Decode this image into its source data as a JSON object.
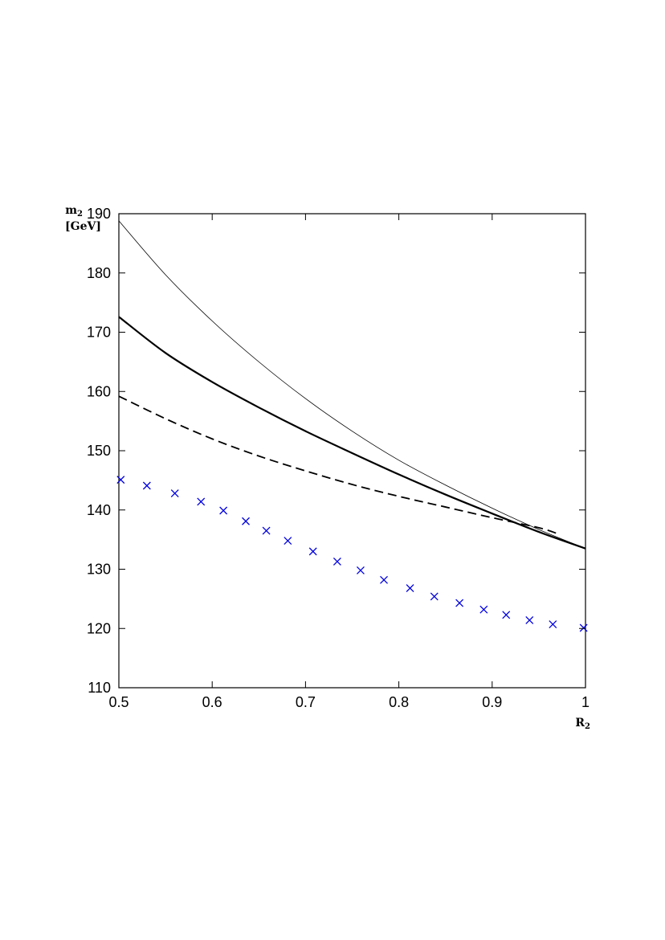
{
  "chart_data": {
    "type": "line",
    "xlabel": "R",
    "xlabel_sub": "2",
    "ylabel": "m",
    "ylabel_sub": "2",
    "ylabel_unit": "[GeV]",
    "xlim": [
      0.5,
      1.0
    ],
    "ylim": [
      110,
      190
    ],
    "xticks": [
      "0.5",
      "0.6",
      "0.7",
      "0.8",
      "0.9",
      "1"
    ],
    "yticks": [
      "110",
      "120",
      "130",
      "140",
      "150",
      "160",
      "170",
      "180",
      "190"
    ],
    "grid": false,
    "legend": "none",
    "series": [
      {
        "style": "thin-solid",
        "color": "#000000",
        "x": [
          0.5,
          0.55,
          0.6,
          0.65,
          0.7,
          0.75,
          0.8,
          0.85,
          0.9,
          0.95,
          1.0
        ],
        "y": [
          188.8,
          179.7,
          171.9,
          165.0,
          158.8,
          153.3,
          148.4,
          144.2,
          140.3,
          136.7,
          133.5
        ]
      },
      {
        "style": "thick-solid",
        "color": "#000000",
        "x": [
          0.5,
          0.55,
          0.6,
          0.65,
          0.7,
          0.75,
          0.8,
          0.85,
          0.9,
          0.95,
          1.0
        ],
        "y": [
          172.6,
          166.5,
          161.6,
          157.3,
          153.3,
          149.6,
          146.0,
          142.6,
          139.4,
          136.3,
          133.5
        ]
      },
      {
        "style": "dashed",
        "color": "#000000",
        "x": [
          0.5,
          0.55,
          0.6,
          0.65,
          0.7,
          0.75,
          0.8,
          0.85,
          0.9,
          0.95,
          0.97
        ],
        "y": [
          159.2,
          155.4,
          152.0,
          149.1,
          146.6,
          144.3,
          142.3,
          140.5,
          138.7,
          137.0,
          136.0
        ]
      },
      {
        "style": "x-markers",
        "color": "#0000e0",
        "x": [
          0.502,
          0.53,
          0.56,
          0.588,
          0.612,
          0.636,
          0.658,
          0.681,
          0.708,
          0.734,
          0.759,
          0.784,
          0.812,
          0.838,
          0.865,
          0.891,
          0.915,
          0.94,
          0.965,
          0.998
        ],
        "y": [
          145.1,
          144.1,
          142.8,
          141.4,
          139.9,
          138.1,
          136.5,
          134.8,
          133.0,
          131.3,
          129.8,
          128.2,
          126.8,
          125.4,
          124.3,
          123.2,
          122.3,
          121.4,
          120.7,
          120.1
        ]
      }
    ]
  }
}
